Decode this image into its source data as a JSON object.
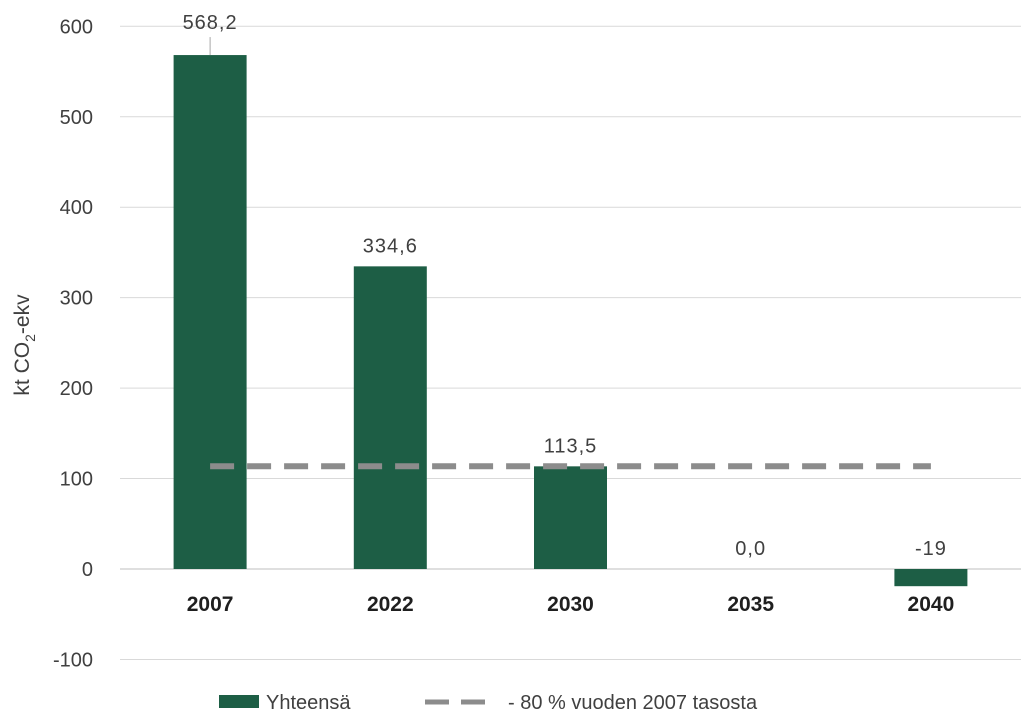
{
  "chart_data": {
    "type": "bar",
    "categories": [
      "2007",
      "2022",
      "2030",
      "2035",
      "2040"
    ],
    "series": [
      {
        "name": "Yhteensä",
        "type": "bar",
        "values": [
          568.2,
          334.6,
          113.5,
          0.0,
          -19
        ]
      },
      {
        "name": "- 80 % vuoden 2007 tasosta",
        "type": "line",
        "style": "dashed",
        "values": [
          113.6,
          113.6,
          113.6,
          113.6,
          113.6
        ]
      }
    ],
    "data_labels": [
      "568,2",
      "334,6",
      "113,5",
      "0,0",
      "-19"
    ],
    "ylabel": {
      "main": "kt CO",
      "sub": "2",
      "suffix": "-ekv"
    },
    "ylim": [
      -100,
      600
    ],
    "yticks": [
      600,
      500,
      400,
      300,
      200,
      100,
      0,
      -100
    ],
    "grid": "horizontal",
    "legend_position": "bottom",
    "colors": {
      "bar": "#1d5e45",
      "line": "#8c8c8c",
      "grid": "#d9d9d9",
      "axis": "#bfbfbf"
    }
  }
}
